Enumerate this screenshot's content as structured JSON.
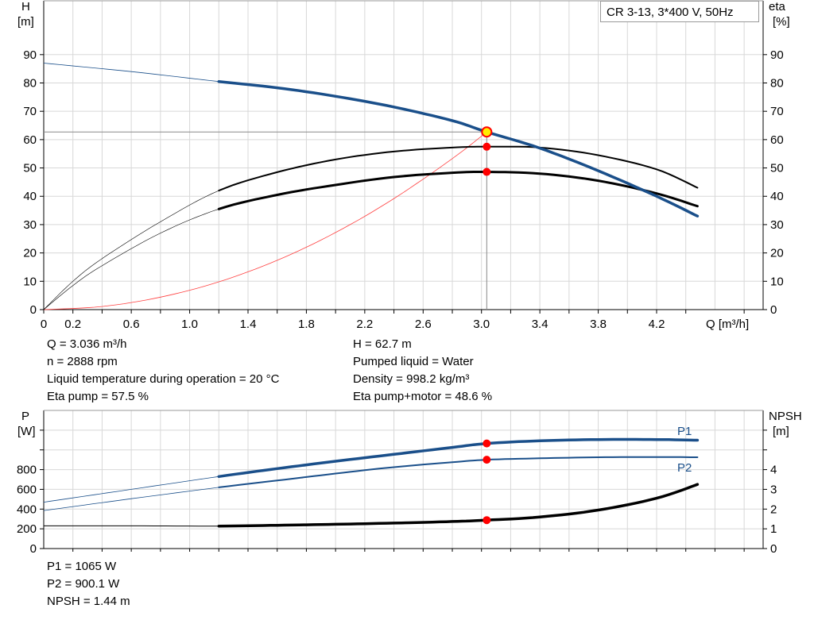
{
  "legend_box": "CR 3-13, 3*400 V, 50Hz",
  "colors": {
    "head": "#1a4f8a",
    "efficiency": "#000000",
    "system": "#ff4040",
    "power": "#1a4f8a",
    "npsh": "#000000",
    "duty_point": "#ff0000",
    "duty_point_highlight": "#ffee00"
  },
  "chart_data": [
    {
      "type": "line",
      "xlabel": "Q [m³/h]",
      "ylabel_left_lines": [
        "H",
        "[m]"
      ],
      "ylabel_right_lines": [
        "eta",
        "[%]"
      ],
      "xlim": [
        0,
        4.93
      ],
      "ylim": [
        0,
        109
      ],
      "x_ticks": [
        0,
        0.2,
        0.6,
        1.0,
        1.4,
        1.8,
        2.2,
        2.6,
        3.0,
        3.4,
        3.8,
        4.2
      ],
      "x_tick_labels": [
        "0",
        "0.2",
        "0.6",
        "1.0",
        "1.4",
        "1.8",
        "2.2",
        "2.6",
        "3.0",
        "3.4",
        "3.8",
        "4.2"
      ],
      "y_ticks": [
        0,
        10,
        20,
        30,
        40,
        50,
        60,
        70,
        80,
        90
      ],
      "y_tick_labels": [
        "0",
        "10",
        "20",
        "30",
        "40",
        "50",
        "60",
        "70",
        "80",
        "90"
      ],
      "grid": true,
      "series": [
        {
          "id": "head",
          "x": [
            0,
            0.6,
            1.2,
            1.6,
            2.0,
            2.4,
            2.8,
            3.036,
            3.4,
            3.8,
            4.2,
            4.48
          ],
          "y": [
            87,
            84,
            80.5,
            78.3,
            75.3,
            71.5,
            66.7,
            62.7,
            57,
            49,
            40,
            33
          ],
          "thick_from": 1.2
        },
        {
          "id": "eta-pump",
          "x": [
            0,
            0.2,
            0.4,
            0.8,
            1.2,
            1.6,
            2.0,
            2.4,
            2.8,
            3.036,
            3.4,
            3.8,
            4.2,
            4.48
          ],
          "y": [
            0,
            10,
            18,
            31,
            42,
            48.5,
            53,
            55.8,
            57.2,
            57.5,
            57.2,
            54.5,
            49.5,
            43
          ],
          "thick_from": 1.2
        },
        {
          "id": "eta-total",
          "x": [
            0,
            0.2,
            0.4,
            0.8,
            1.2,
            1.6,
            2.0,
            2.4,
            2.8,
            3.036,
            3.4,
            3.8,
            4.2,
            4.48
          ],
          "y": [
            0,
            8.5,
            15.5,
            27,
            35.5,
            40.5,
            44,
            46.8,
            48.3,
            48.6,
            48,
            45.5,
            41,
            36.5
          ],
          "thick_from": 1.2
        },
        {
          "id": "system-curve",
          "x": [
            0,
            0.4,
            0.8,
            1.2,
            1.6,
            2.0,
            2.4,
            2.8,
            3.036
          ],
          "y": [
            0,
            1.1,
            4.4,
            9.8,
            17.4,
            27.2,
            39.2,
            53.3,
            62.7
          ]
        }
      ],
      "duty_point": {
        "q": 3.036,
        "h": 62.7,
        "eta_pump": 57.5,
        "eta_total": 48.6
      },
      "readouts_left": [
        "Q = 3.036 m³/h",
        "n = 2888 rpm",
        "Liquid temperature during operation = 20 °C",
        "Eta pump = 57.5 %"
      ],
      "readouts_right": [
        "H = 62.7 m",
        "Pumped liquid = Water",
        "Density = 998.2 kg/m³",
        "Eta pump+motor = 48.6 %"
      ]
    },
    {
      "type": "line",
      "ylabel_left_lines": [
        "P",
        "[W]"
      ],
      "ylabel_right_lines": [
        "NPSH",
        "[m]"
      ],
      "xlim": [
        0,
        4.93
      ],
      "ylim": [
        0,
        1400
      ],
      "ylim_right": [
        0,
        7
      ],
      "y_ticks": [
        0,
        200,
        400,
        600,
        800,
        1000,
        1200
      ],
      "y_tick_labels": [
        "0",
        "200",
        "400",
        "600",
        "800",
        "",
        ""
      ],
      "y_ticks_right": [
        0,
        1,
        2,
        3,
        4,
        5,
        6
      ],
      "y_tick_labels_right": [
        "0",
        "1",
        "2",
        "3",
        "4",
        "",
        ""
      ],
      "grid": true,
      "series": [
        {
          "id": "p1",
          "name": "P1",
          "x": [
            0,
            0.6,
            1.2,
            1.6,
            2.0,
            2.4,
            2.8,
            3.036,
            3.4,
            3.8,
            4.2,
            4.48
          ],
          "y": [
            470,
            600,
            730,
            810,
            885,
            955,
            1025,
            1065,
            1092,
            1105,
            1105,
            1098
          ],
          "thick_from": 1.2,
          "axis": "left"
        },
        {
          "id": "p2",
          "name": "P2",
          "x": [
            0,
            0.6,
            1.2,
            1.6,
            2.0,
            2.4,
            2.8,
            3.036,
            3.4,
            3.8,
            4.2,
            4.48
          ],
          "y": [
            385,
            505,
            620,
            690,
            760,
            825,
            875,
            900,
            915,
            925,
            928,
            925
          ],
          "thick_from": 1.2,
          "axis": "left"
        },
        {
          "id": "npsh",
          "x": [
            0,
            0.6,
            1.2,
            1.6,
            2.0,
            2.4,
            2.8,
            3.036,
            3.4,
            3.8,
            4.2,
            4.48
          ],
          "y": [
            1.15,
            1.15,
            1.14,
            1.18,
            1.23,
            1.29,
            1.37,
            1.44,
            1.6,
            1.95,
            2.55,
            3.25
          ],
          "thick_from": 1.2,
          "axis": "right"
        }
      ],
      "duty_point": {
        "q": 3.036,
        "p1": 1065,
        "p2": 900.1,
        "npsh": 1.44
      },
      "readouts": [
        "P1 = 1065 W",
        "P2 = 900.1 W",
        "NPSH = 1.44 m"
      ]
    }
  ]
}
